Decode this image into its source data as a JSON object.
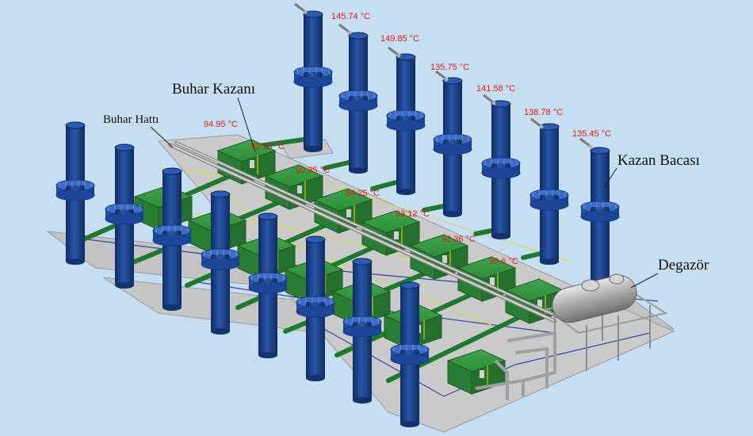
{
  "annotations": {
    "buhar_kazani": "Buhar Kazanı",
    "buhar_hatti": "Buhar Hattı",
    "kazan_bacasi": "Kazan Bacası",
    "degazor": "Degazör"
  },
  "stack_temperatures": [
    "145.74 °C",
    "149.85 °C",
    "135.75 °C",
    "141.58 °C",
    "138.78 °C",
    "135.45 °C"
  ],
  "boiler_temperatures": [
    "94.95 °C",
    "93.15 °C",
    "90.35 °C",
    "94.25 °C",
    "93.12 °C",
    "92.36 °C",
    "95.6 °C"
  ],
  "colors": {
    "background": "#c6def2",
    "floor": "#c9c9c9",
    "stack": "#1a3f85",
    "boiler": "#2e8c3a",
    "pipe": "#1e7a2e",
    "temperature_text": "#e01a12"
  }
}
